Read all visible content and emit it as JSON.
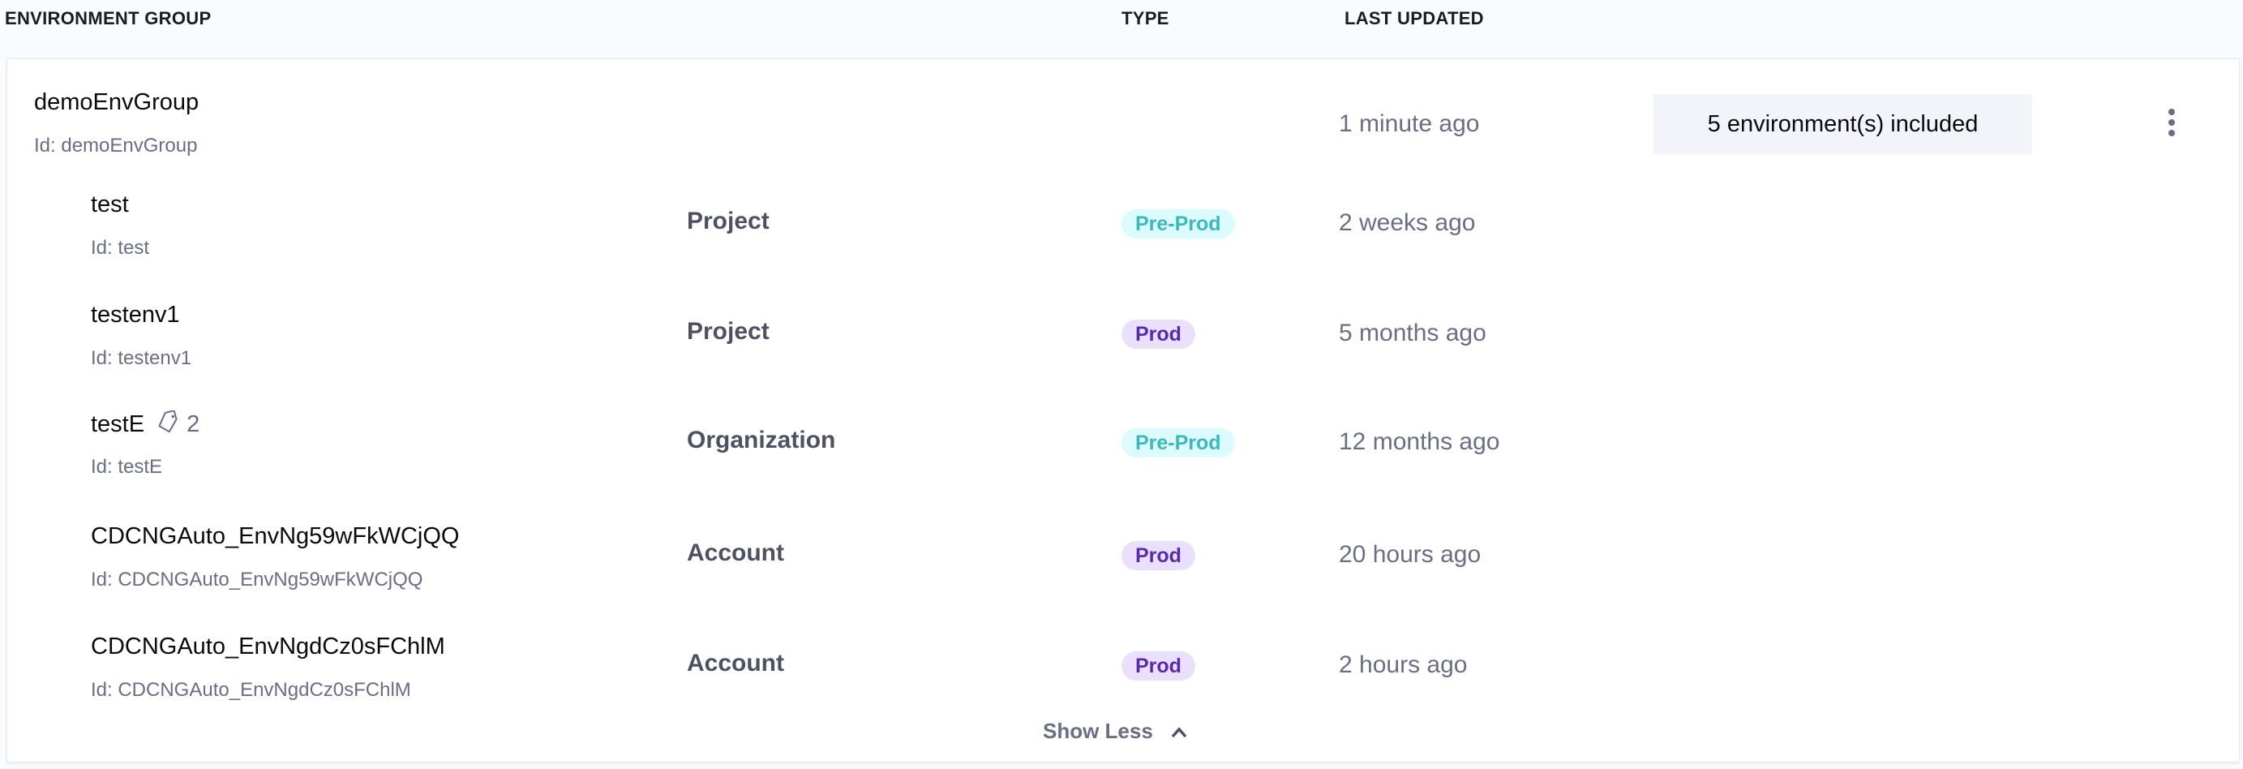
{
  "header": {
    "col_group": "ENVIRONMENT GROUP",
    "col_type": "TYPE",
    "col_updated": "LAST UPDATED"
  },
  "group": {
    "name": "demoEnvGroup",
    "id": "Id: demoEnvGroup",
    "last_updated": "1 minute ago",
    "envs_included": "5 environment(s) included",
    "menu_icon": "kebab-vertical-icon"
  },
  "environments": [
    {
      "name": "test",
      "id": "Id: test",
      "scope": "Project",
      "type": "Pre-Prod",
      "last_updated": "2 weeks ago"
    },
    {
      "name": "testenv1",
      "id": "Id: testenv1",
      "scope": "Project",
      "type": "Prod",
      "last_updated": "5 months ago"
    },
    {
      "name": "testE",
      "tag_count": "2",
      "tag_icon": "tag-icon",
      "id": "Id: testE",
      "scope": "Organization",
      "type": "Pre-Prod",
      "last_updated": "12 months ago"
    },
    {
      "name": "CDCNGAuto_EnvNg59wFkWCjQQ",
      "id": "Id: CDCNGAuto_EnvNg59wFkWCjQQ",
      "scope": "Account",
      "type": "Prod",
      "last_updated": "20 hours ago"
    },
    {
      "name": "CDCNGAuto_EnvNgdCz0sFChlM",
      "id": "Id: CDCNGAuto_EnvNgdCz0sFChlM",
      "scope": "Account",
      "type": "Prod",
      "last_updated": "2 hours ago"
    }
  ],
  "show_less": "Show Less",
  "colors": {
    "preprod_bg": "#dcfbfc",
    "preprod_text": "#3cb9c0",
    "prod_bg": "#eadffd",
    "prod_text": "#592baa"
  }
}
